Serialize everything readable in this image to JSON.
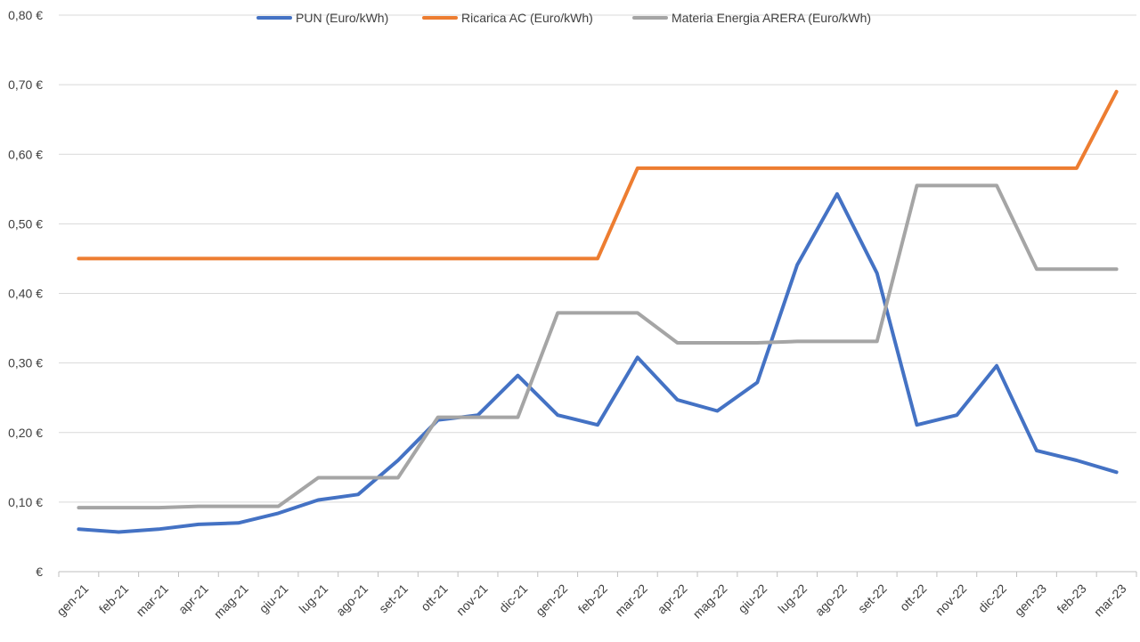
{
  "chart_data": {
    "type": "line",
    "categories": [
      "gen-21",
      "feb-21",
      "mar-21",
      "apr-21",
      "mag-21",
      "giu-21",
      "lug-21",
      "ago-21",
      "set-21",
      "ott-21",
      "nov-21",
      "dic-21",
      "gen-22",
      "feb-22",
      "mar-22",
      "apr-22",
      "mag-22",
      "giu-22",
      "lug-22",
      "ago-22",
      "set-22",
      "ott-22",
      "nov-22",
      "dic-22",
      "gen-23",
      "feb-23",
      "mar-23"
    ],
    "series": [
      {
        "name": "PUN (Euro/kWh)",
        "color": "#4472c4",
        "values": [
          0.061,
          0.057,
          0.061,
          0.068,
          0.07,
          0.084,
          0.103,
          0.111,
          0.16,
          0.218,
          0.225,
          0.282,
          0.225,
          0.211,
          0.308,
          0.247,
          0.231,
          0.272,
          0.441,
          0.543,
          0.429,
          0.211,
          0.225,
          0.296,
          0.174,
          0.16,
          0.143
        ]
      },
      {
        "name": "Ricarica AC (Euro/kWh)",
        "color": "#ed7d31",
        "values": [
          0.45,
          0.45,
          0.45,
          0.45,
          0.45,
          0.45,
          0.45,
          0.45,
          0.45,
          0.45,
          0.45,
          0.45,
          0.45,
          0.45,
          0.58,
          0.58,
          0.58,
          0.58,
          0.58,
          0.58,
          0.58,
          0.58,
          0.58,
          0.58,
          0.58,
          0.58,
          0.69
        ]
      },
      {
        "name": "Materia Energia ARERA (Euro/kWh)",
        "color": "#a5a5a5",
        "values": [
          0.092,
          0.092,
          0.092,
          0.094,
          0.094,
          0.094,
          0.135,
          0.135,
          0.135,
          0.222,
          0.222,
          0.222,
          0.372,
          0.372,
          0.372,
          0.329,
          0.329,
          0.329,
          0.331,
          0.331,
          0.331,
          0.555,
          0.555,
          0.555,
          0.435,
          0.435,
          0.435
        ]
      }
    ],
    "y_ticks": [
      0,
      0.1,
      0.2,
      0.3,
      0.4,
      0.5,
      0.6,
      0.7,
      0.8
    ],
    "y_tick_labels": [
      "€",
      "0,10 €",
      "0,20 €",
      "0,30 €",
      "0,40 €",
      "0,50 €",
      "0,60 €",
      "0,70 €",
      "0,80 €"
    ],
    "ylim": [
      0,
      0.8
    ],
    "grid": true,
    "legend_position": "top"
  }
}
